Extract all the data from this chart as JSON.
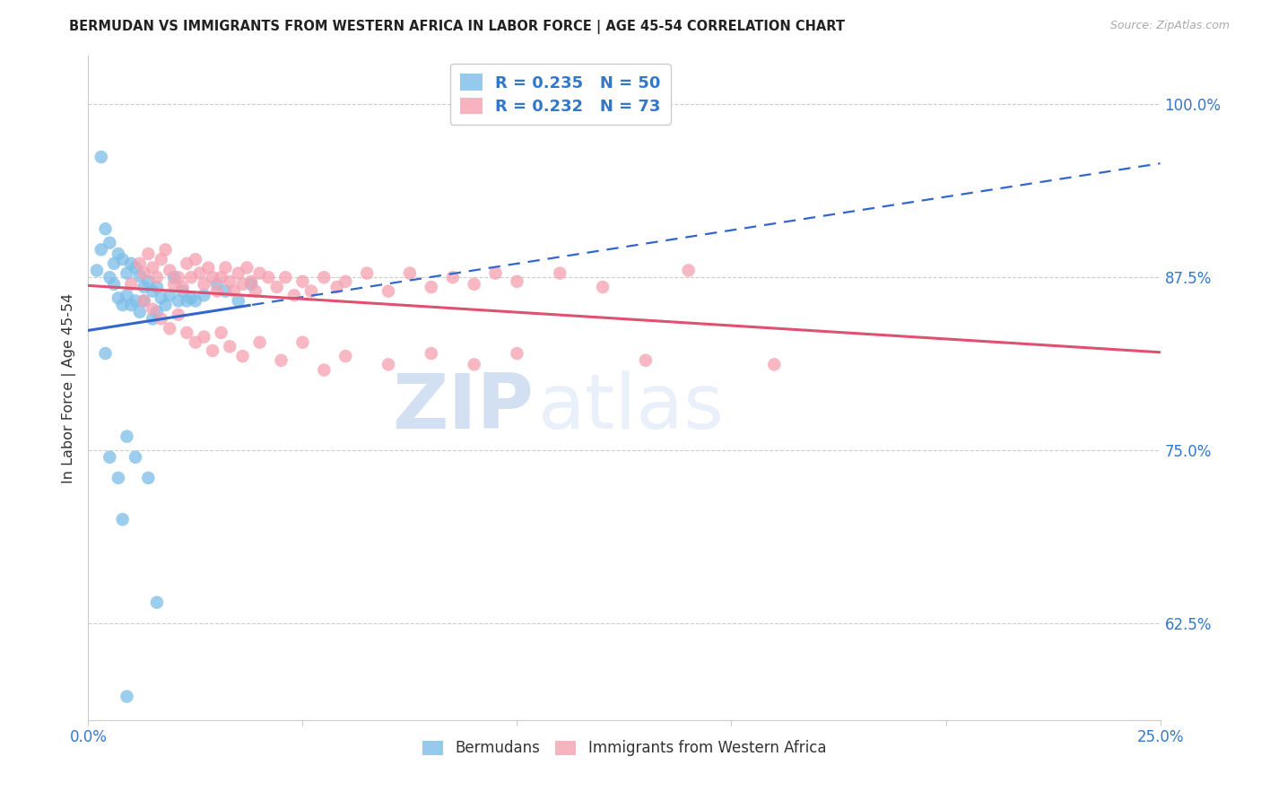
{
  "title": "BERMUDAN VS IMMIGRANTS FROM WESTERN AFRICA IN LABOR FORCE | AGE 45-54 CORRELATION CHART",
  "source": "Source: ZipAtlas.com",
  "ylabel": "In Labor Force | Age 45-54",
  "xlim": [
    0.0,
    0.25
  ],
  "ylim": [
    0.555,
    1.035
  ],
  "xtick_positions": [
    0.0,
    0.05,
    0.1,
    0.15,
    0.2,
    0.25
  ],
  "xticklabels": [
    "0.0%",
    "",
    "",
    "",
    "",
    "25.0%"
  ],
  "ytick_positions": [
    0.625,
    0.75,
    0.875,
    1.0
  ],
  "ytick_labels": [
    "62.5%",
    "75.0%",
    "87.5%",
    "100.0%"
  ],
  "blue_color": "#7bbde8",
  "pink_color": "#f5a0b0",
  "blue_line_color": "#3366cc",
  "pink_line_color": "#e05070",
  "r_blue": 0.235,
  "n_blue": 50,
  "r_pink": 0.232,
  "n_pink": 73,
  "watermark_zip": "ZIP",
  "watermark_atlas": "atlas",
  "legend_label_blue": "Bermudans",
  "legend_label_pink": "Immigrants from Western Africa",
  "blue_x": [
    0.002,
    0.003,
    0.004,
    0.005,
    0.005,
    0.006,
    0.006,
    0.007,
    0.007,
    0.008,
    0.008,
    0.009,
    0.009,
    0.01,
    0.01,
    0.011,
    0.011,
    0.012,
    0.012,
    0.013,
    0.013,
    0.014,
    0.015,
    0.015,
    0.016,
    0.016,
    0.017,
    0.018,
    0.019,
    0.02,
    0.021,
    0.022,
    0.023,
    0.024,
    0.025,
    0.027,
    0.03,
    0.032,
    0.035,
    0.038,
    0.003,
    0.004,
    0.005,
    0.007,
    0.008,
    0.009,
    0.011,
    0.014,
    0.016,
    0.009
  ],
  "blue_y": [
    0.88,
    0.895,
    0.91,
    0.875,
    0.9,
    0.885,
    0.87,
    0.892,
    0.86,
    0.888,
    0.855,
    0.878,
    0.862,
    0.885,
    0.855,
    0.882,
    0.858,
    0.876,
    0.85,
    0.868,
    0.858,
    0.872,
    0.865,
    0.845,
    0.868,
    0.85,
    0.86,
    0.855,
    0.862,
    0.875,
    0.858,
    0.865,
    0.858,
    0.86,
    0.858,
    0.862,
    0.87,
    0.865,
    0.858,
    0.87,
    0.962,
    0.82,
    0.745,
    0.73,
    0.7,
    0.76,
    0.745,
    0.73,
    0.64,
    0.572
  ],
  "pink_x": [
    0.01,
    0.012,
    0.013,
    0.014,
    0.015,
    0.016,
    0.017,
    0.018,
    0.019,
    0.02,
    0.021,
    0.022,
    0.023,
    0.024,
    0.025,
    0.026,
    0.027,
    0.028,
    0.029,
    0.03,
    0.031,
    0.032,
    0.033,
    0.034,
    0.035,
    0.036,
    0.037,
    0.038,
    0.039,
    0.04,
    0.042,
    0.044,
    0.046,
    0.048,
    0.05,
    0.052,
    0.055,
    0.058,
    0.06,
    0.065,
    0.07,
    0.075,
    0.08,
    0.085,
    0.09,
    0.095,
    0.1,
    0.11,
    0.12,
    0.14,
    0.013,
    0.015,
    0.017,
    0.019,
    0.021,
    0.023,
    0.025,
    0.027,
    0.029,
    0.031,
    0.033,
    0.036,
    0.04,
    0.045,
    0.05,
    0.055,
    0.06,
    0.07,
    0.08,
    0.09,
    0.1,
    0.13,
    0.16
  ],
  "pink_y": [
    0.87,
    0.885,
    0.878,
    0.892,
    0.882,
    0.875,
    0.888,
    0.895,
    0.88,
    0.87,
    0.875,
    0.868,
    0.885,
    0.875,
    0.888,
    0.878,
    0.87,
    0.882,
    0.875,
    0.865,
    0.875,
    0.882,
    0.872,
    0.865,
    0.878,
    0.87,
    0.882,
    0.872,
    0.865,
    0.878,
    0.875,
    0.868,
    0.875,
    0.862,
    0.872,
    0.865,
    0.875,
    0.868,
    0.872,
    0.878,
    0.865,
    0.878,
    0.868,
    0.875,
    0.87,
    0.878,
    0.872,
    0.878,
    0.868,
    0.88,
    0.858,
    0.852,
    0.845,
    0.838,
    0.848,
    0.835,
    0.828,
    0.832,
    0.822,
    0.835,
    0.825,
    0.818,
    0.828,
    0.815,
    0.828,
    0.808,
    0.818,
    0.812,
    0.82,
    0.812,
    0.82,
    0.815,
    0.812
  ]
}
